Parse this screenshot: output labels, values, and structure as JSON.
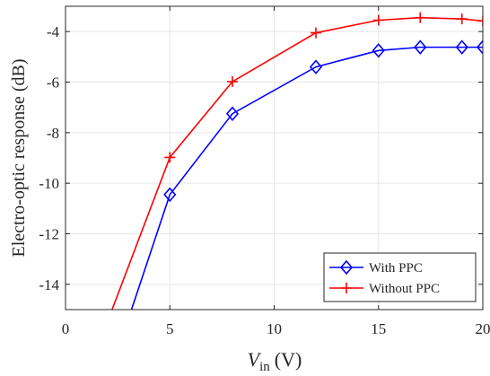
{
  "chart_data": {
    "type": "line",
    "xlabel": "V",
    "xlabel_sub": "in",
    "xlabel_unit": "(V)",
    "ylabel": "Electro-optic response (dB)",
    "xlim": [
      0,
      20
    ],
    "ylim": [
      -15,
      -3
    ],
    "xticks": [
      0,
      5,
      10,
      15,
      20
    ],
    "yticks": [
      -14,
      -12,
      -10,
      -8,
      -6,
      -4
    ],
    "xtick_labels": [
      "0",
      "5",
      "10",
      "15",
      "20"
    ],
    "ytick_labels": [
      "-14",
      "-12",
      "-10",
      "-8",
      "-6",
      "-4"
    ],
    "grid": true,
    "legend_position": "bottom-right",
    "series": [
      {
        "name": "With PPC",
        "color": "#0000ff",
        "marker": "diamond",
        "x": [
          3,
          5,
          8,
          12,
          15,
          17,
          19,
          20
        ],
        "y": [
          -15.4,
          -10.45,
          -7.25,
          -5.4,
          -4.75,
          -4.62,
          -4.62,
          -4.62
        ]
      },
      {
        "name": "Without PPC",
        "color": "#ff0000",
        "marker": "plus",
        "x": [
          2,
          5,
          8,
          12,
          15,
          17,
          19,
          20
        ],
        "y": [
          -15.5,
          -8.98,
          -5.98,
          -4.05,
          -3.55,
          -3.45,
          -3.5,
          -3.58
        ]
      }
    ]
  }
}
